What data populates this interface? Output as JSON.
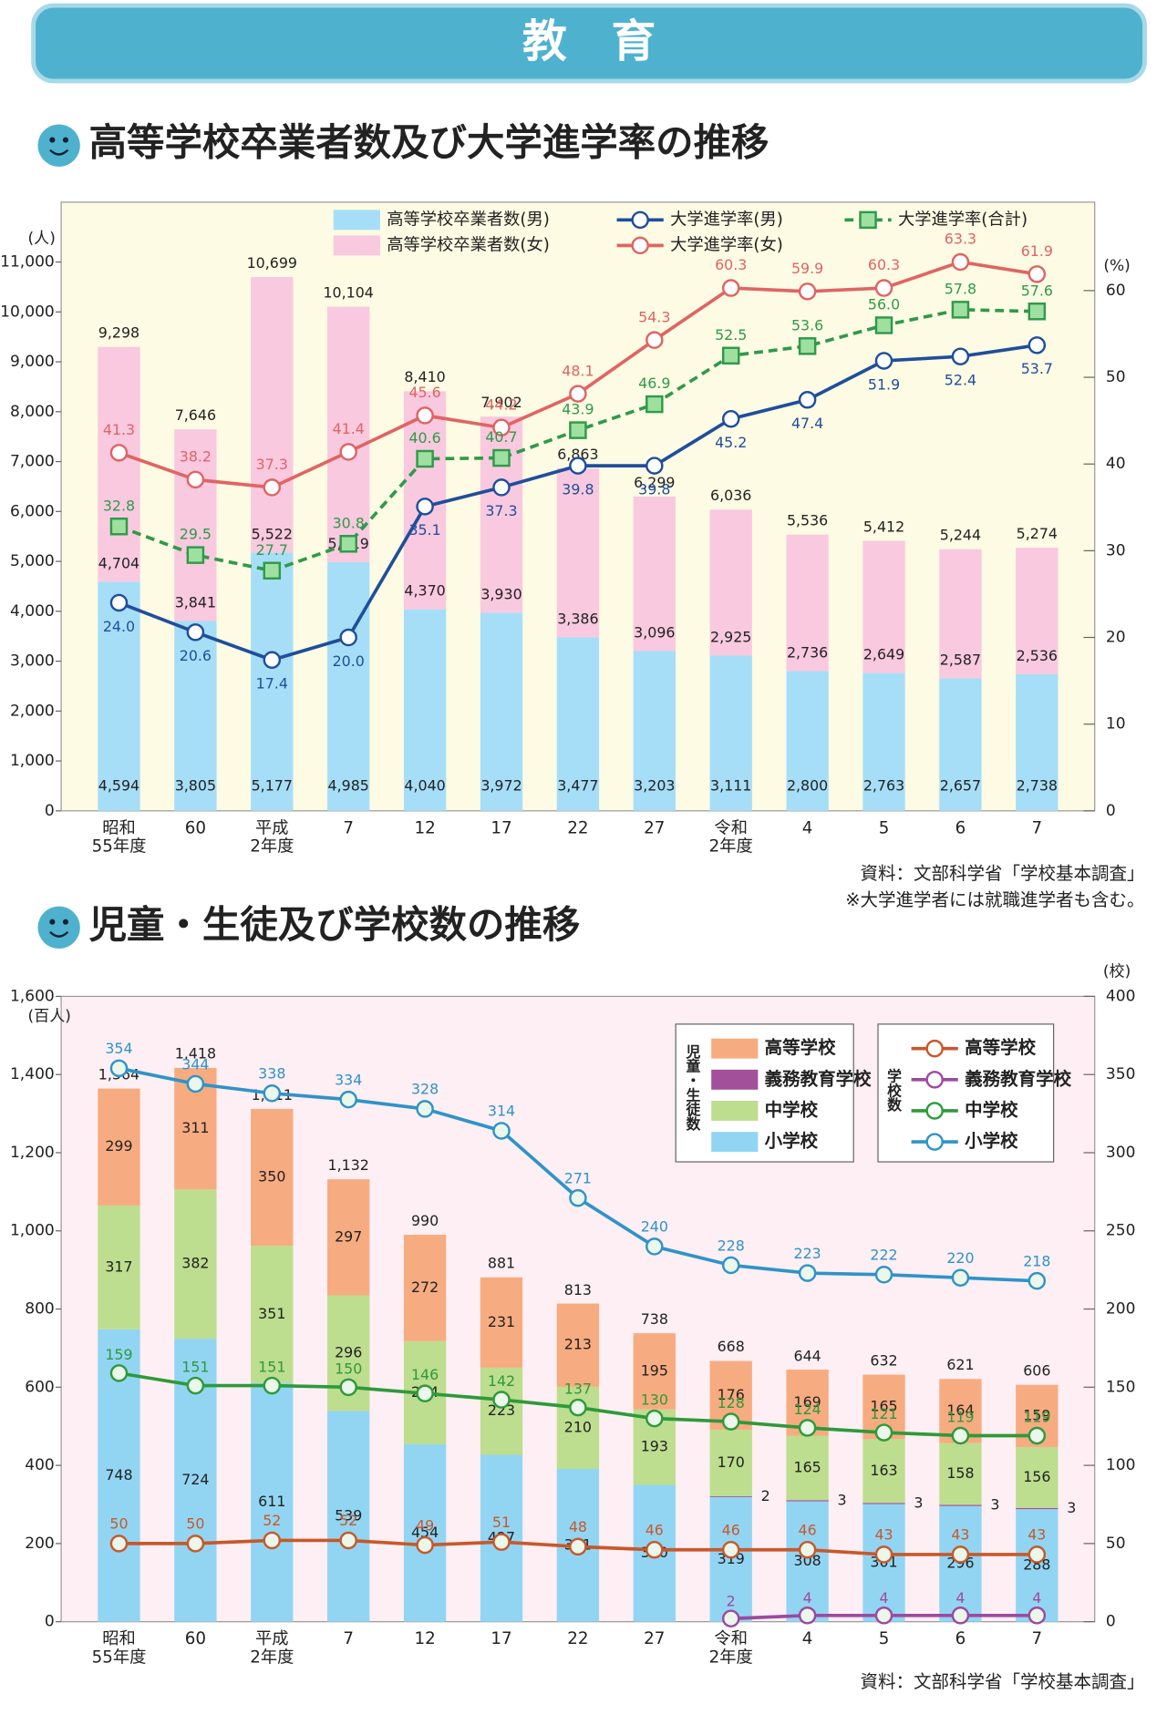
{
  "header": {
    "title": "教　育"
  },
  "chart_data": [
    {
      "type": "combo",
      "title": "高等学校卒業者数及び大学進学率の推移",
      "y_label": "(人)",
      "y2_label": "(%)",
      "categories": [
        "昭和\n55年度",
        "60",
        "平成\n2年度",
        "7",
        "12",
        "17",
        "22",
        "27",
        "令和\n2年度",
        "4",
        "5",
        "6",
        "7"
      ],
      "ylim": [
        0,
        12200
      ],
      "yticks": [
        0,
        {
          "value": 1000,
          "label": "1,000"
        },
        {
          "value": 2000,
          "label": "2,000"
        },
        {
          "value": 3000,
          "label": "3,000"
        },
        {
          "value": 4000,
          "label": "4,000"
        },
        {
          "value": 5000,
          "label": "5,000"
        },
        {
          "value": 6000,
          "label": "6,000"
        },
        {
          "value": 7000,
          "label": "7,000"
        },
        {
          "value": 8000,
          "label": "8,000"
        },
        {
          "value": 9000,
          "label": "9,000"
        },
        {
          "value": 10000,
          "label": "10,000"
        },
        {
          "value": 11000,
          "label": "11,000"
        }
      ],
      "y2lim": [
        0,
        70.2
      ],
      "y2ticks": [
        0,
        10,
        20,
        30,
        40,
        50,
        60
      ],
      "series": [
        {
          "name": "高等学校卒業者数(男)",
          "type": "bar",
          "color": "#a6def7",
          "values": [
            4594,
            3805,
            5177,
            4985,
            4040,
            3972,
            3477,
            3203,
            3111,
            2800,
            2763,
            2657,
            2738
          ],
          "value_labels": [
            "4,594",
            "3,805",
            "5,177",
            "4,985",
            "4,040",
            "3,972",
            "3,477",
            "3,203",
            "3,111",
            "2,800",
            "2,763",
            "2,657",
            "2,738"
          ]
        },
        {
          "name": "高等学校卒業者数(女)",
          "type": "bar",
          "color": "#f9c9df",
          "values": [
            4704,
            3841,
            5522,
            5119,
            4370,
            3930,
            3386,
            3096,
            2925,
            2736,
            2649,
            2587,
            2536
          ],
          "value_labels": [
            "4,704",
            "3,841",
            "5,522",
            "5,119",
            "4,370",
            "3,930",
            "3,386",
            "3,096",
            "2,925",
            "2,736",
            "2,649",
            "2,587",
            "2,536"
          ]
        },
        {
          "name": "大学進学率(男)",
          "type": "line",
          "axis": "y2",
          "color": "#1f4e9c",
          "marker": "circle",
          "values": [
            24.0,
            20.6,
            17.4,
            20.0,
            35.1,
            37.3,
            39.8,
            39.8,
            45.2,
            47.4,
            51.9,
            52.4,
            53.7
          ],
          "value_labels": [
            "24.0",
            "20.6",
            "17.4",
            "20.0",
            "35.1",
            "37.3",
            "39.8",
            "39.8",
            "45.2",
            "47.4",
            "51.9",
            "52.4",
            "53.7"
          ]
        },
        {
          "name": "大学進学率(女)",
          "type": "line",
          "axis": "y2",
          "color": "#e06464",
          "marker": "circle",
          "values": [
            41.3,
            38.2,
            37.3,
            41.4,
            45.6,
            44.2,
            48.1,
            54.3,
            60.3,
            59.9,
            60.3,
            63.3,
            61.9
          ],
          "value_labels": [
            "41.3",
            "38.2",
            "37.3",
            "41.4",
            "45.6",
            "44.2",
            "48.1",
            "54.3",
            "60.3",
            "59.9",
            "60.3",
            "63.3",
            "61.9"
          ]
        },
        {
          "name": "大学進学率(合計)",
          "type": "line",
          "axis": "y2",
          "color": "#2e9a4a",
          "marker": "square",
          "dash": true,
          "values": [
            32.8,
            29.5,
            27.7,
            30.8,
            40.6,
            40.7,
            43.9,
            46.9,
            52.5,
            53.6,
            56.0,
            57.8,
            57.6
          ],
          "value_labels": [
            "32.8",
            "29.5",
            "27.7",
            "30.8",
            "40.6",
            "40.7",
            "43.9",
            "46.9",
            "52.5",
            "53.6",
            "56.0",
            "57.8",
            "57.6"
          ]
        }
      ],
      "totals": [
        9298,
        7646,
        10699,
        10104,
        8410,
        7902,
        6863,
        6299,
        6036,
        5536,
        5412,
        5244,
        5274
      ],
      "total_labels": [
        "9,298",
        "7,646",
        "10,699",
        "10,104",
        "8,410",
        "7,902",
        "6,863",
        "6,299",
        "6,036",
        "5,536",
        "5,412",
        "5,244",
        "5,274"
      ],
      "notes": [
        "資料：文部科学省「学校基本調査」",
        "※大学進学者には就職進学者も含む。"
      ]
    },
    {
      "type": "combo",
      "title": "児童・生徒及び学校数の推移",
      "y_label": "(百人)",
      "y2_label": "(校)",
      "categories": [
        "昭和\n55年度",
        "60",
        "平成\n2年度",
        "7",
        "12",
        "17",
        "22",
        "27",
        "令和\n2年度",
        "4",
        "5",
        "6",
        "7"
      ],
      "ylim": [
        0,
        1600
      ],
      "yticks": [
        0,
        200,
        400,
        600,
        800,
        {
          "value": 1000,
          "label": "1,000"
        },
        {
          "value": 1200,
          "label": "1,200"
        },
        {
          "value": 1400,
          "label": "1,400"
        },
        {
          "value": 1600,
          "label": "1,600"
        }
      ],
      "y2lim": [
        0,
        400
      ],
      "y2ticks": [
        0,
        50,
        100,
        150,
        200,
        250,
        300,
        350,
        400
      ],
      "legend_group_labels": [
        "児童・生徒数",
        "学校数"
      ],
      "series": [
        {
          "name": "小学校",
          "type": "bar",
          "color": "#92d5f3",
          "values": [
            748,
            724,
            611,
            539,
            454,
            427,
            391,
            350,
            319,
            308,
            301,
            296,
            288
          ]
        },
        {
          "name": "義務教育学校",
          "type": "bar",
          "color": "#a2509a",
          "values": [
            null,
            null,
            null,
            null,
            null,
            null,
            null,
            null,
            2,
            3,
            3,
            3,
            3
          ]
        },
        {
          "name": "中学校",
          "type": "bar",
          "color": "#bddd8f",
          "values": [
            317,
            382,
            351,
            296,
            264,
            223,
            210,
            193,
            170,
            165,
            163,
            158,
            156
          ]
        },
        {
          "name": "高等学校",
          "type": "bar",
          "color": "#f7ab80",
          "values": [
            299,
            311,
            350,
            297,
            272,
            231,
            213,
            195,
            176,
            169,
            165,
            164,
            159
          ]
        },
        {
          "name": "小学校",
          "type": "line",
          "axis": "y2",
          "color": "#2f93c8",
          "marker": "circle",
          "values": [
            354,
            344,
            338,
            334,
            328,
            314,
            271,
            240,
            228,
            223,
            222,
            220,
            218
          ]
        },
        {
          "name": "義務教育学校",
          "type": "line",
          "axis": "y2",
          "color": "#9c4aa0",
          "marker": "circle",
          "values": [
            null,
            null,
            null,
            null,
            null,
            null,
            null,
            null,
            2,
            4,
            4,
            4,
            4
          ]
        },
        {
          "name": "中学校",
          "type": "line",
          "axis": "y2",
          "color": "#2e9a3a",
          "marker": "circle",
          "values": [
            159,
            151,
            151,
            150,
            146,
            142,
            137,
            130,
            128,
            124,
            121,
            119,
            119
          ]
        },
        {
          "name": "高等学校",
          "type": "line",
          "axis": "y2",
          "color": "#c8582a",
          "marker": "circle",
          "values": [
            50,
            50,
            52,
            52,
            49,
            51,
            48,
            46,
            46,
            46,
            43,
            43,
            43
          ]
        }
      ],
      "totals": [
        1364,
        1418,
        1311,
        1132,
        990,
        881,
        813,
        738,
        668,
        644,
        632,
        621,
        606
      ],
      "total_labels": [
        "1,364",
        "1,418",
        "1,311",
        "1,132",
        "990",
        "881",
        "813",
        "738",
        "668",
        "644",
        "632",
        "621",
        "606"
      ],
      "notes": [
        "資料：文部科学省「学校基本調査」"
      ]
    }
  ]
}
